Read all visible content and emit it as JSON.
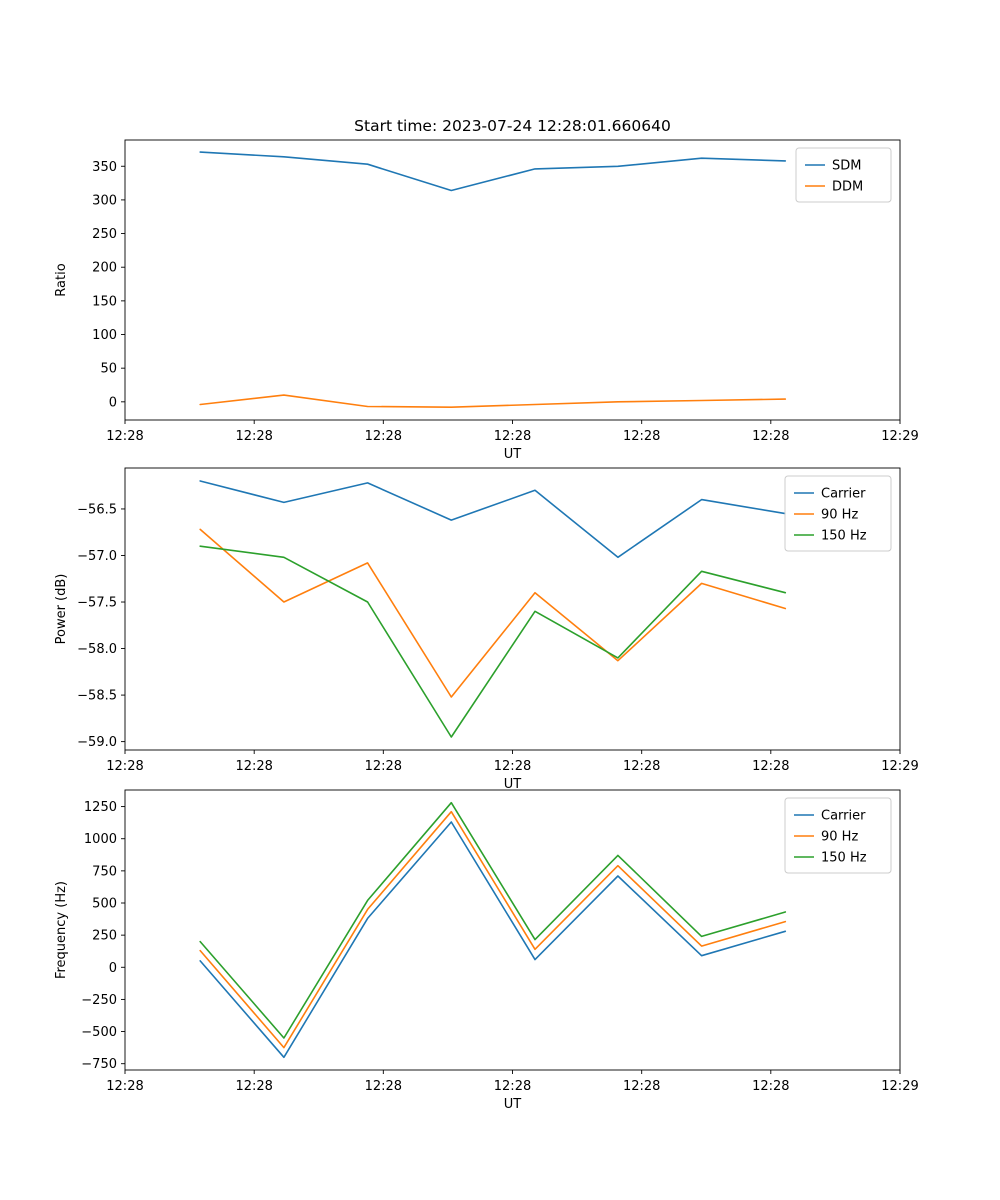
{
  "figure": {
    "title": "Start time: 2023-07-24 12:28:01.660640",
    "background": "#ffffff"
  },
  "palette": {
    "blue": "#1f77b4",
    "orange": "#ff7f0e",
    "green": "#2ca02c"
  },
  "chart_data": [
    {
      "type": "line",
      "name": "ratio",
      "title": "Start time: 2023-07-24 12:28:01.660640",
      "xlabel": "UT",
      "ylabel": "Ratio",
      "ylim": [
        -27,
        389
      ],
      "yticks": [
        0,
        50,
        100,
        150,
        200,
        250,
        300,
        350
      ],
      "ytick_labels": [
        "0",
        "50",
        "100",
        "150",
        "200",
        "250",
        "300",
        "350"
      ],
      "xticks": [
        0,
        0.1667,
        0.3333,
        0.5,
        0.6667,
        0.8333,
        1
      ],
      "xtick_labels": [
        "12:28",
        "12:28",
        "12:28",
        "12:28",
        "12:28",
        "12:28",
        "12:29"
      ],
      "x": [
        0.097,
        0.205,
        0.313,
        0.421,
        0.529,
        0.636,
        0.744,
        0.852
      ],
      "grid": false,
      "legend": {
        "position": "upper right",
        "entries": [
          "SDM",
          "DDM"
        ]
      },
      "series": [
        {
          "name": "SDM",
          "color": "#1f77b4",
          "values": [
            371,
            364,
            353,
            314,
            346,
            350,
            362,
            358
          ]
        },
        {
          "name": "DDM",
          "color": "#ff7f0e",
          "values": [
            -4,
            10,
            -7,
            -8,
            -4,
            0,
            2,
            4
          ]
        }
      ]
    },
    {
      "type": "line",
      "name": "power",
      "title": "",
      "xlabel": "UT",
      "ylabel": "Power (dB)",
      "ylim": [
        -59.09,
        -56.06
      ],
      "yticks": [
        -59.0,
        -58.5,
        -58.0,
        -57.5,
        -57.0,
        -56.5
      ],
      "ytick_labels": [
        "−59.0",
        "−58.5",
        "−58.0",
        "−57.5",
        "−57.0",
        "−56.5"
      ],
      "xticks": [
        0,
        0.1667,
        0.3333,
        0.5,
        0.6667,
        0.8333,
        1
      ],
      "xtick_labels": [
        "12:28",
        "12:28",
        "12:28",
        "12:28",
        "12:28",
        "12:28",
        "12:29"
      ],
      "x": [
        0.097,
        0.205,
        0.313,
        0.421,
        0.529,
        0.636,
        0.744,
        0.852
      ],
      "grid": false,
      "legend": {
        "position": "upper right",
        "entries": [
          "Carrier",
          "90 Hz",
          "150 Hz"
        ]
      },
      "series": [
        {
          "name": "Carrier",
          "color": "#1f77b4",
          "values": [
            -56.2,
            -56.43,
            -56.22,
            -56.62,
            -56.3,
            -57.02,
            -56.4,
            -56.55
          ]
        },
        {
          "name": "90 Hz",
          "color": "#ff7f0e",
          "values": [
            -56.72,
            -57.5,
            -57.08,
            -58.52,
            -57.4,
            -58.13,
            -57.3,
            -57.57
          ]
        },
        {
          "name": "150 Hz",
          "color": "#2ca02c",
          "values": [
            -56.9,
            -57.02,
            -57.5,
            -58.95,
            -57.6,
            -58.1,
            -57.17,
            -57.4
          ]
        }
      ]
    },
    {
      "type": "line",
      "name": "frequency",
      "title": "",
      "xlabel": "UT",
      "ylabel": "Frequency (Hz)",
      "ylim": [
        -799,
        1379
      ],
      "yticks": [
        -750,
        -500,
        -250,
        0,
        250,
        500,
        750,
        1000,
        1250
      ],
      "ytick_labels": [
        "−750",
        "−500",
        "−250",
        "0",
        "250",
        "500",
        "750",
        "1000",
        "1250"
      ],
      "xticks": [
        0,
        0.1667,
        0.3333,
        0.5,
        0.6667,
        0.8333,
        1
      ],
      "xtick_labels": [
        "12:28",
        "12:28",
        "12:28",
        "12:28",
        "12:28",
        "12:28",
        "12:29"
      ],
      "x": [
        0.097,
        0.205,
        0.313,
        0.421,
        0.529,
        0.636,
        0.744,
        0.852
      ],
      "grid": false,
      "legend": {
        "position": "upper right",
        "entries": [
          "Carrier",
          "90 Hz",
          "150 Hz"
        ]
      },
      "series": [
        {
          "name": "Carrier",
          "color": "#1f77b4",
          "values": [
            50,
            -700,
            380,
            1130,
            60,
            710,
            90,
            280
          ]
        },
        {
          "name": "90 Hz",
          "color": "#ff7f0e",
          "values": [
            130,
            -625,
            450,
            1210,
            140,
            790,
            165,
            355
          ]
        },
        {
          "name": "150 Hz",
          "color": "#2ca02c",
          "values": [
            200,
            -550,
            520,
            1280,
            215,
            870,
            240,
            430
          ]
        }
      ]
    }
  ]
}
